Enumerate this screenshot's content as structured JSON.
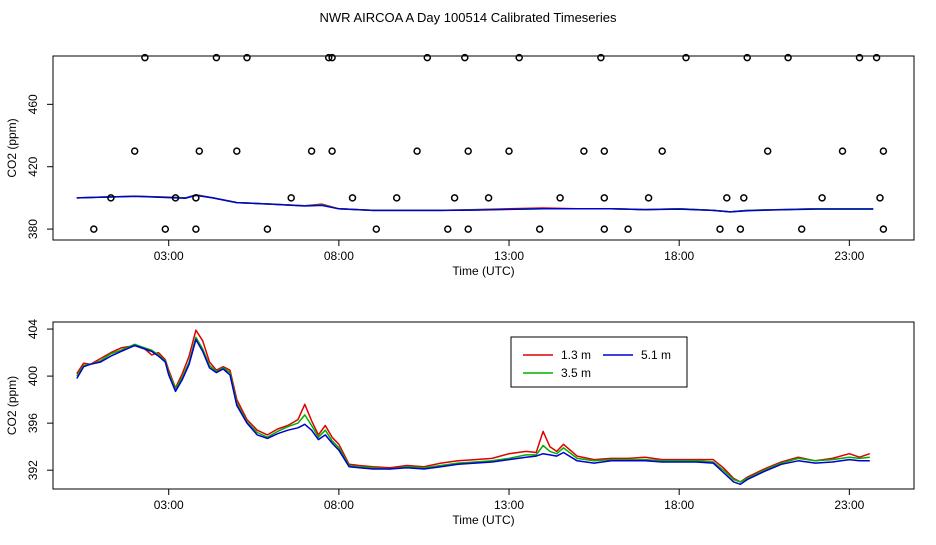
{
  "title": "NWR AIRCOA A  Day 100514  Calibrated Timeseries",
  "colors": {
    "red": "#e00000",
    "green": "#00b000",
    "blue": "#0000d0",
    "axis": "#000000"
  },
  "chart_data": [
    {
      "type": "scatter",
      "xlabel": "Time (UTC)",
      "ylabel": "CO2 (ppm)",
      "xlim": [
        -0.4,
        24.9
      ],
      "ylim": [
        373,
        491
      ],
      "xticks": [
        3,
        8,
        13,
        18,
        23
      ],
      "xtick_labels": [
        "03:00",
        "08:00",
        "13:00",
        "18:00",
        "23:00"
      ],
      "yticks": [
        380,
        420,
        460
      ],
      "ytick_labels": [
        "380",
        "420",
        "460"
      ],
      "lines": [
        {
          "name": "1.3 m",
          "color": "#e00000",
          "x": [
            0.3,
            1.0,
            2.0,
            3.0,
            3.5,
            3.8,
            4.3,
            5.0,
            6.0,
            7.0,
            7.5,
            8.0,
            9.0,
            10.0,
            11.0,
            12.0,
            13.0,
            14.0,
            15.0,
            16.0,
            17.0,
            18.0,
            19.0,
            19.5,
            20.0,
            21.0,
            22.0,
            23.0,
            23.7
          ],
          "y": [
            400,
            400.5,
            401,
            400.5,
            400,
            402,
            400,
            397,
            396,
            395,
            396,
            393,
            392,
            392,
            392,
            392.5,
            393,
            393.5,
            393,
            393,
            392.5,
            393,
            392,
            391,
            392,
            392.5,
            393,
            393,
            393
          ]
        },
        {
          "name": "3.5 m",
          "color": "#00b000",
          "x": [
            0.3,
            1.0,
            2.0,
            3.0,
            3.5,
            3.8,
            4.3,
            5.0,
            6.0,
            7.0,
            7.5,
            8.0,
            9.0,
            10.0,
            11.0,
            12.0,
            13.0,
            14.0,
            15.0,
            16.0,
            17.0,
            18.0,
            19.0,
            19.5,
            20.0,
            21.0,
            22.0,
            23.0,
            23.7
          ],
          "y": [
            400,
            400.5,
            401,
            400.3,
            400,
            401.8,
            400,
            397,
            396,
            395,
            395.5,
            393,
            392,
            392,
            392,
            392.3,
            392.7,
            393,
            393,
            393,
            392.5,
            393,
            392,
            391,
            392,
            392.5,
            393,
            393,
            393
          ]
        },
        {
          "name": "5.1 m",
          "color": "#0000d0",
          "x": [
            0.3,
            1.0,
            2.0,
            3.0,
            3.5,
            3.8,
            4.3,
            5.0,
            6.0,
            7.0,
            7.5,
            8.0,
            9.0,
            10.0,
            11.0,
            12.0,
            13.0,
            14.0,
            15.0,
            16.0,
            17.0,
            18.0,
            19.0,
            19.5,
            20.0,
            21.0,
            22.0,
            23.0,
            23.7
          ],
          "y": [
            400,
            400.4,
            401,
            400.2,
            399.8,
            401.6,
            400,
            397,
            396,
            394.8,
            395.2,
            393,
            392,
            392,
            392,
            392.2,
            392.6,
            393,
            393,
            393,
            392.5,
            392.8,
            392,
            391,
            391.8,
            392.4,
            392.8,
            392.8,
            392.8
          ]
        }
      ],
      "points": {
        "x": [
          0.8,
          1.3,
          2.0,
          2.3,
          3.2,
          2.9,
          3.8,
          3.8,
          3.9,
          4.4,
          5.0,
          5.3,
          5.9,
          6.6,
          7.2,
          7.7,
          7.8,
          7.8,
          8.4,
          9.1,
          9.7,
          10.3,
          10.6,
          11.2,
          11.4,
          11.7,
          11.8,
          11.8,
          12.4,
          13.0,
          13.3,
          13.9,
          14.5,
          15.2,
          15.7,
          15.8,
          15.8,
          15.8,
          16.5,
          17.1,
          17.5,
          18.2,
          19.2,
          19.4,
          19.8,
          19.9,
          20.0,
          20.6,
          21.2,
          21.6,
          22.2,
          22.8,
          23.3,
          23.8,
          23.9,
          24.0,
          24.0
        ],
        "y": [
          380,
          400,
          430,
          490,
          400,
          380,
          380,
          400,
          430,
          490,
          430,
          490,
          380,
          400,
          430,
          490,
          430,
          490,
          400,
          380,
          400,
          430,
          490,
          380,
          400,
          490,
          380,
          430,
          400,
          430,
          490,
          380,
          400,
          430,
          490,
          400,
          380,
          430,
          380,
          400,
          430,
          490,
          380,
          400,
          380,
          400,
          490,
          430,
          490,
          380,
          400,
          430,
          490,
          490,
          400,
          380,
          430
        ]
      }
    },
    {
      "type": "line",
      "xlabel": "Time (UTC)",
      "ylabel": "CO2 (ppm)",
      "xlim": [
        -0.4,
        24.9
      ],
      "ylim": [
        390.4,
        404.6
      ],
      "xticks": [
        3,
        8,
        13,
        18,
        23
      ],
      "xtick_labels": [
        "03:00",
        "08:00",
        "13:00",
        "18:00",
        "23:00"
      ],
      "yticks": [
        392,
        396,
        400,
        404
      ],
      "ytick_labels": [
        "392",
        "396",
        "400",
        "404"
      ],
      "legend": {
        "position": "top-right",
        "entries": [
          "1.3 m",
          "3.5 m",
          "5.1 m"
        ]
      },
      "series": [
        {
          "name": "1.3 m",
          "color": "#e00000",
          "x": [
            0.3,
            0.5,
            0.7,
            1.0,
            1.3,
            1.6,
            2.0,
            2.3,
            2.5,
            2.7,
            2.9,
            3.0,
            3.2,
            3.4,
            3.6,
            3.8,
            4.0,
            4.2,
            4.4,
            4.6,
            4.8,
            5.0,
            5.3,
            5.6,
            5.9,
            6.2,
            6.5,
            6.8,
            7.0,
            7.2,
            7.4,
            7.6,
            7.8,
            8.0,
            8.3,
            8.6,
            9.0,
            9.5,
            10.0,
            10.5,
            11.0,
            11.5,
            12.0,
            12.5,
            13.0,
            13.5,
            13.8,
            14.0,
            14.2,
            14.4,
            14.6,
            15.0,
            15.5,
            16.0,
            16.5,
            17.0,
            17.5,
            18.0,
            18.5,
            19.0,
            19.3,
            19.6,
            19.8,
            20.0,
            20.5,
            21.0,
            21.5,
            22.0,
            22.5,
            23.0,
            23.3,
            23.6
          ],
          "y": [
            400.2,
            401.1,
            401.0,
            401.5,
            402.0,
            402.4,
            402.6,
            402.3,
            401.8,
            402.0,
            401.4,
            400.5,
            399.0,
            400.2,
            401.7,
            403.9,
            403.0,
            401.2,
            400.5,
            400.8,
            400.5,
            398.0,
            396.3,
            395.4,
            395.0,
            395.5,
            395.8,
            396.3,
            397.6,
            396.2,
            395.0,
            395.8,
            394.8,
            394.2,
            392.5,
            392.4,
            392.3,
            392.2,
            392.4,
            392.3,
            392.6,
            392.8,
            392.9,
            393.0,
            393.4,
            393.6,
            393.5,
            395.3,
            394.0,
            393.6,
            394.2,
            393.2,
            392.9,
            393.0,
            393.0,
            393.1,
            392.9,
            392.9,
            392.9,
            392.9,
            392.2,
            391.3,
            391.0,
            391.4,
            392.1,
            392.7,
            393.1,
            392.8,
            393.0,
            393.4,
            393.1,
            393.4
          ]
        },
        {
          "name": "3.5 m",
          "color": "#00b000",
          "x": [
            0.3,
            0.5,
            0.7,
            1.0,
            1.3,
            1.6,
            2.0,
            2.3,
            2.5,
            2.7,
            2.9,
            3.0,
            3.2,
            3.4,
            3.6,
            3.8,
            4.0,
            4.2,
            4.4,
            4.6,
            4.8,
            5.0,
            5.3,
            5.6,
            5.9,
            6.2,
            6.5,
            6.8,
            7.0,
            7.2,
            7.4,
            7.6,
            7.8,
            8.0,
            8.3,
            8.6,
            9.0,
            9.5,
            10.0,
            10.5,
            11.0,
            11.5,
            12.0,
            12.5,
            13.0,
            13.5,
            13.8,
            14.0,
            14.2,
            14.4,
            14.6,
            15.0,
            15.5,
            16.0,
            16.5,
            17.0,
            17.5,
            18.0,
            18.5,
            19.0,
            19.3,
            19.6,
            19.8,
            20.0,
            20.5,
            21.0,
            21.5,
            22.0,
            22.5,
            23.0,
            23.3,
            23.6
          ],
          "y": [
            400.0,
            400.9,
            401.0,
            401.3,
            401.9,
            402.2,
            402.7,
            402.4,
            402.2,
            401.8,
            401.3,
            400.3,
            398.9,
            399.9,
            401.2,
            403.3,
            402.3,
            400.9,
            400.4,
            400.7,
            400.3,
            397.7,
            396.1,
            395.2,
            394.8,
            395.3,
            395.7,
            396.0,
            396.7,
            395.8,
            394.8,
            395.4,
            394.5,
            393.9,
            392.4,
            392.3,
            392.2,
            392.1,
            392.3,
            392.2,
            392.4,
            392.6,
            392.7,
            392.8,
            393.0,
            393.3,
            393.3,
            394.1,
            393.6,
            393.4,
            393.9,
            393.0,
            392.8,
            392.9,
            392.9,
            392.9,
            392.8,
            392.8,
            392.8,
            392.7,
            392.0,
            391.2,
            391.0,
            391.3,
            392.0,
            392.6,
            393.0,
            392.8,
            392.9,
            393.1,
            393.0,
            393.1
          ]
        },
        {
          "name": "5.1 m",
          "color": "#0000d0",
          "x": [
            0.3,
            0.5,
            0.7,
            1.0,
            1.3,
            1.6,
            2.0,
            2.3,
            2.5,
            2.7,
            2.9,
            3.0,
            3.2,
            3.4,
            3.6,
            3.8,
            4.0,
            4.2,
            4.4,
            4.6,
            4.8,
            5.0,
            5.3,
            5.6,
            5.9,
            6.2,
            6.5,
            6.8,
            7.0,
            7.2,
            7.4,
            7.6,
            7.8,
            8.0,
            8.3,
            8.6,
            9.0,
            9.5,
            10.0,
            10.5,
            11.0,
            11.5,
            12.0,
            12.5,
            13.0,
            13.5,
            13.8,
            14.0,
            14.2,
            14.4,
            14.6,
            15.0,
            15.5,
            16.0,
            16.5,
            17.0,
            17.5,
            18.0,
            18.5,
            19.0,
            19.3,
            19.6,
            19.8,
            20.0,
            20.5,
            21.0,
            21.5,
            22.0,
            22.5,
            23.0,
            23.3,
            23.6
          ],
          "y": [
            399.8,
            400.8,
            401.0,
            401.2,
            401.7,
            402.1,
            402.6,
            402.3,
            402.1,
            401.7,
            401.2,
            400.1,
            398.7,
            399.7,
            401.0,
            403.1,
            402.1,
            400.7,
            400.3,
            400.6,
            400.1,
            397.5,
            396.0,
            395.0,
            394.7,
            395.1,
            395.4,
            395.6,
            395.9,
            395.4,
            394.6,
            395.0,
            394.3,
            393.7,
            392.3,
            392.2,
            392.1,
            392.1,
            392.2,
            392.1,
            392.3,
            392.5,
            392.6,
            392.7,
            392.9,
            393.1,
            393.2,
            393.4,
            393.3,
            393.2,
            393.5,
            392.8,
            392.6,
            392.8,
            392.8,
            392.8,
            392.7,
            392.7,
            392.7,
            392.6,
            391.8,
            391.0,
            390.8,
            391.2,
            391.9,
            392.5,
            392.8,
            392.6,
            392.7,
            392.9,
            392.8,
            392.8
          ]
        }
      ]
    }
  ]
}
